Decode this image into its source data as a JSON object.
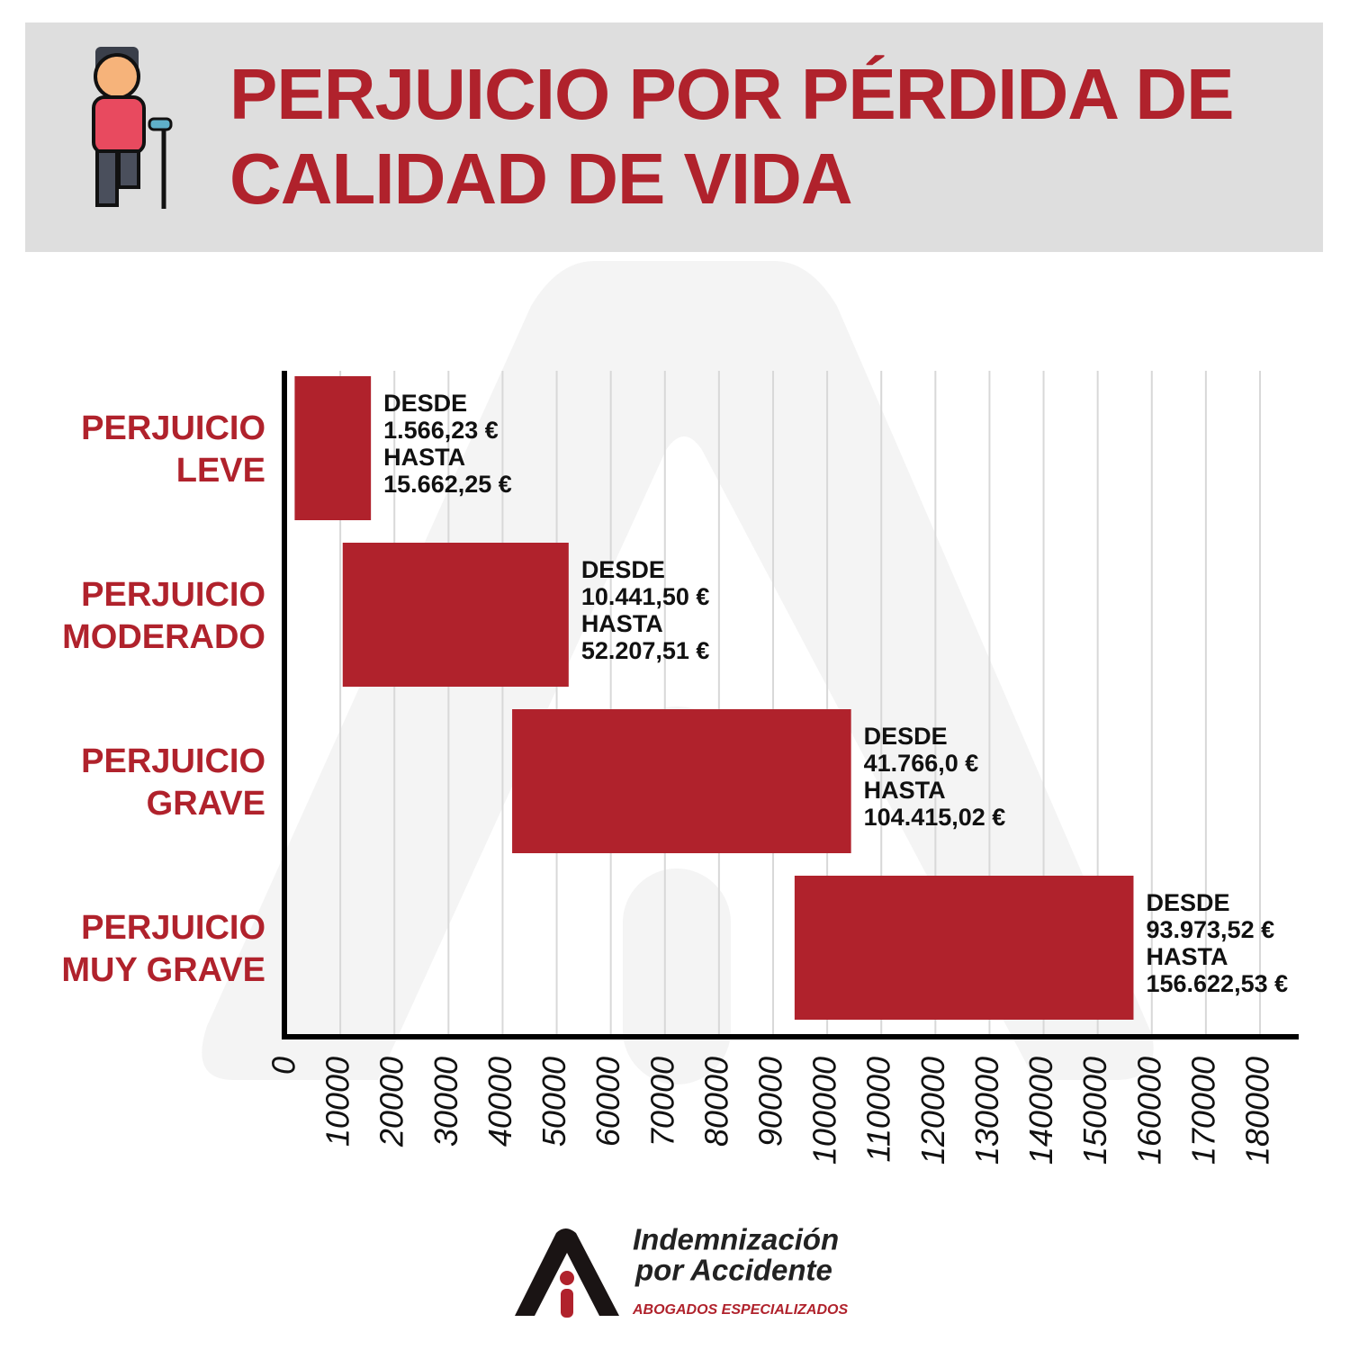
{
  "chart_data": {
    "type": "range_bar",
    "title": "PERJUICIO POR PÉRDIDA DE\nCALIDAD DE VIDA",
    "categories": [
      "PERJUICIO\nLEVE",
      "PERJUICIO\nMODERADO",
      "PERJUICIO\nGRAVE",
      "PERJUICIO\nMUY GRAVE"
    ],
    "series": [
      {
        "name": "DESDE",
        "values": [
          1566.23,
          10441.5,
          41766.0,
          93973.52
        ],
        "value_labels": [
          "1.566,23 €",
          "10.441,50 €",
          "41.766,0 €",
          "93.973,52 €"
        ]
      },
      {
        "name": "HASTA",
        "values": [
          15662.25,
          52207.51,
          104415.02,
          156622.53
        ],
        "value_labels": [
          "15.662,25 €",
          "52.207,51 €",
          "104.415,02 €",
          "156.622,53 €"
        ]
      }
    ],
    "color": "#b0222c",
    "xlim": [
      0,
      180000
    ],
    "xticks": [
      0,
      10000,
      20000,
      30000,
      40000,
      50000,
      60000,
      70000,
      80000,
      90000,
      100000,
      110000,
      120000,
      130000,
      140000,
      150000,
      160000,
      170000,
      180000
    ],
    "grid": true
  },
  "logo": {
    "name_lines": [
      "Indemnización",
      "por Accidente"
    ],
    "tagline": "ABOGADOS ESPECIALIZADOS"
  }
}
